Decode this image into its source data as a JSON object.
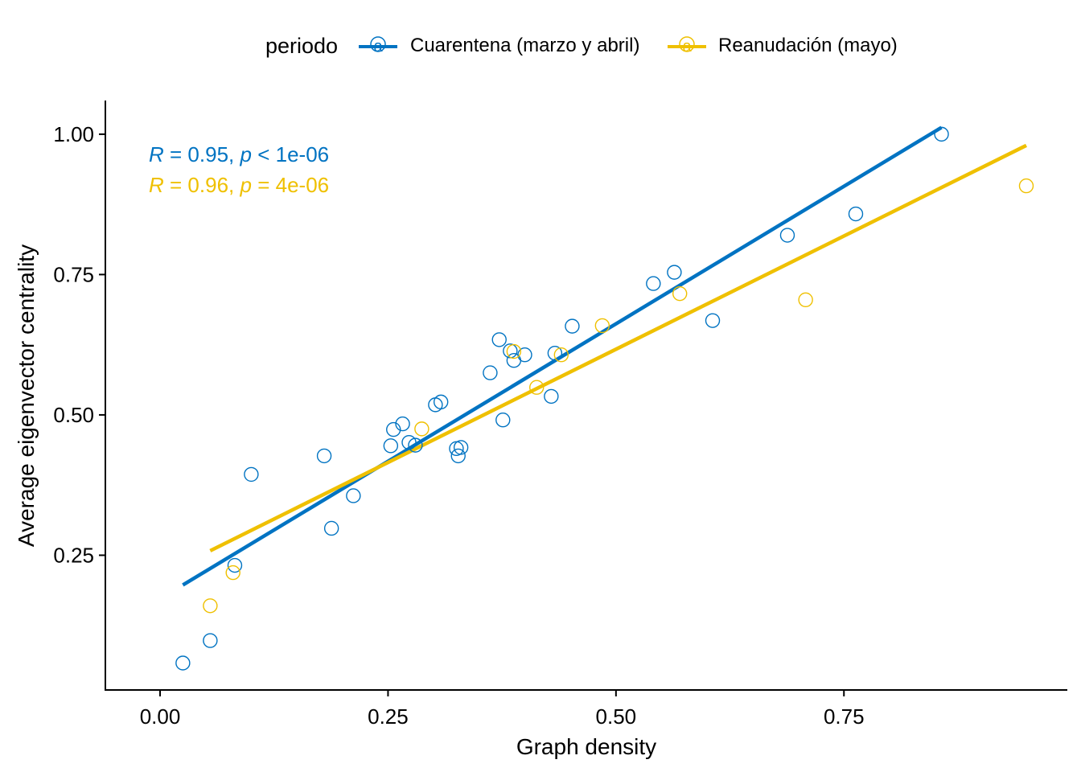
{
  "chart_data": {
    "type": "scatter",
    "xlabel": "Graph density",
    "ylabel": "Average eigenvector centrality",
    "xlim": [
      -0.06,
      0.995
    ],
    "ylim": [
      0.01,
      1.06
    ],
    "xticks": [
      0.0,
      0.25,
      0.5,
      0.75
    ],
    "xtick_labels": [
      "0.00",
      "0.25",
      "0.50",
      "0.75"
    ],
    "yticks": [
      0.25,
      0.5,
      0.75,
      1.0
    ],
    "ytick_labels": [
      "0.25",
      "0.50",
      "0.75",
      "1.00"
    ],
    "grid": false,
    "legend": {
      "title": "periodo",
      "placement": "top",
      "glyph": "a"
    },
    "series": [
      {
        "name": "Cuarentena (marzo y abril)",
        "color": "#0073C2",
        "stat_r": "0.95",
        "stat_p_op": "<",
        "stat_p": "1e-06",
        "fit": [
          [
            0.025,
            0.197
          ],
          [
            0.857,
            1.012
          ]
        ],
        "points": [
          [
            0.025,
            0.058
          ],
          [
            0.055,
            0.098
          ],
          [
            0.082,
            0.232
          ],
          [
            0.1,
            0.394
          ],
          [
            0.18,
            0.427
          ],
          [
            0.188,
            0.298
          ],
          [
            0.212,
            0.356
          ],
          [
            0.253,
            0.445
          ],
          [
            0.256,
            0.474
          ],
          [
            0.266,
            0.484
          ],
          [
            0.273,
            0.451
          ],
          [
            0.28,
            0.446
          ],
          [
            0.302,
            0.518
          ],
          [
            0.308,
            0.523
          ],
          [
            0.325,
            0.44
          ],
          [
            0.327,
            0.427
          ],
          [
            0.33,
            0.442
          ],
          [
            0.362,
            0.575
          ],
          [
            0.372,
            0.634
          ],
          [
            0.376,
            0.491
          ],
          [
            0.384,
            0.614
          ],
          [
            0.388,
            0.597
          ],
          [
            0.4,
            0.607
          ],
          [
            0.429,
            0.533
          ],
          [
            0.433,
            0.61
          ],
          [
            0.452,
            0.658
          ],
          [
            0.541,
            0.734
          ],
          [
            0.564,
            0.754
          ],
          [
            0.606,
            0.668
          ],
          [
            0.688,
            0.82
          ],
          [
            0.763,
            0.858
          ],
          [
            0.857,
            1.0
          ]
        ]
      },
      {
        "name": "Reanudación (mayo)",
        "color": "#EFC000",
        "stat_r": "0.96",
        "stat_p_op": "=",
        "stat_p": "4e-06",
        "fit": [
          [
            0.055,
            0.258
          ],
          [
            0.95,
            0.98
          ]
        ],
        "points": [
          [
            0.055,
            0.16
          ],
          [
            0.08,
            0.219
          ],
          [
            0.287,
            0.475
          ],
          [
            0.388,
            0.613
          ],
          [
            0.413,
            0.549
          ],
          [
            0.44,
            0.607
          ],
          [
            0.485,
            0.659
          ],
          [
            0.57,
            0.716
          ],
          [
            0.708,
            0.705
          ],
          [
            0.95,
            0.908
          ]
        ]
      }
    ]
  }
}
